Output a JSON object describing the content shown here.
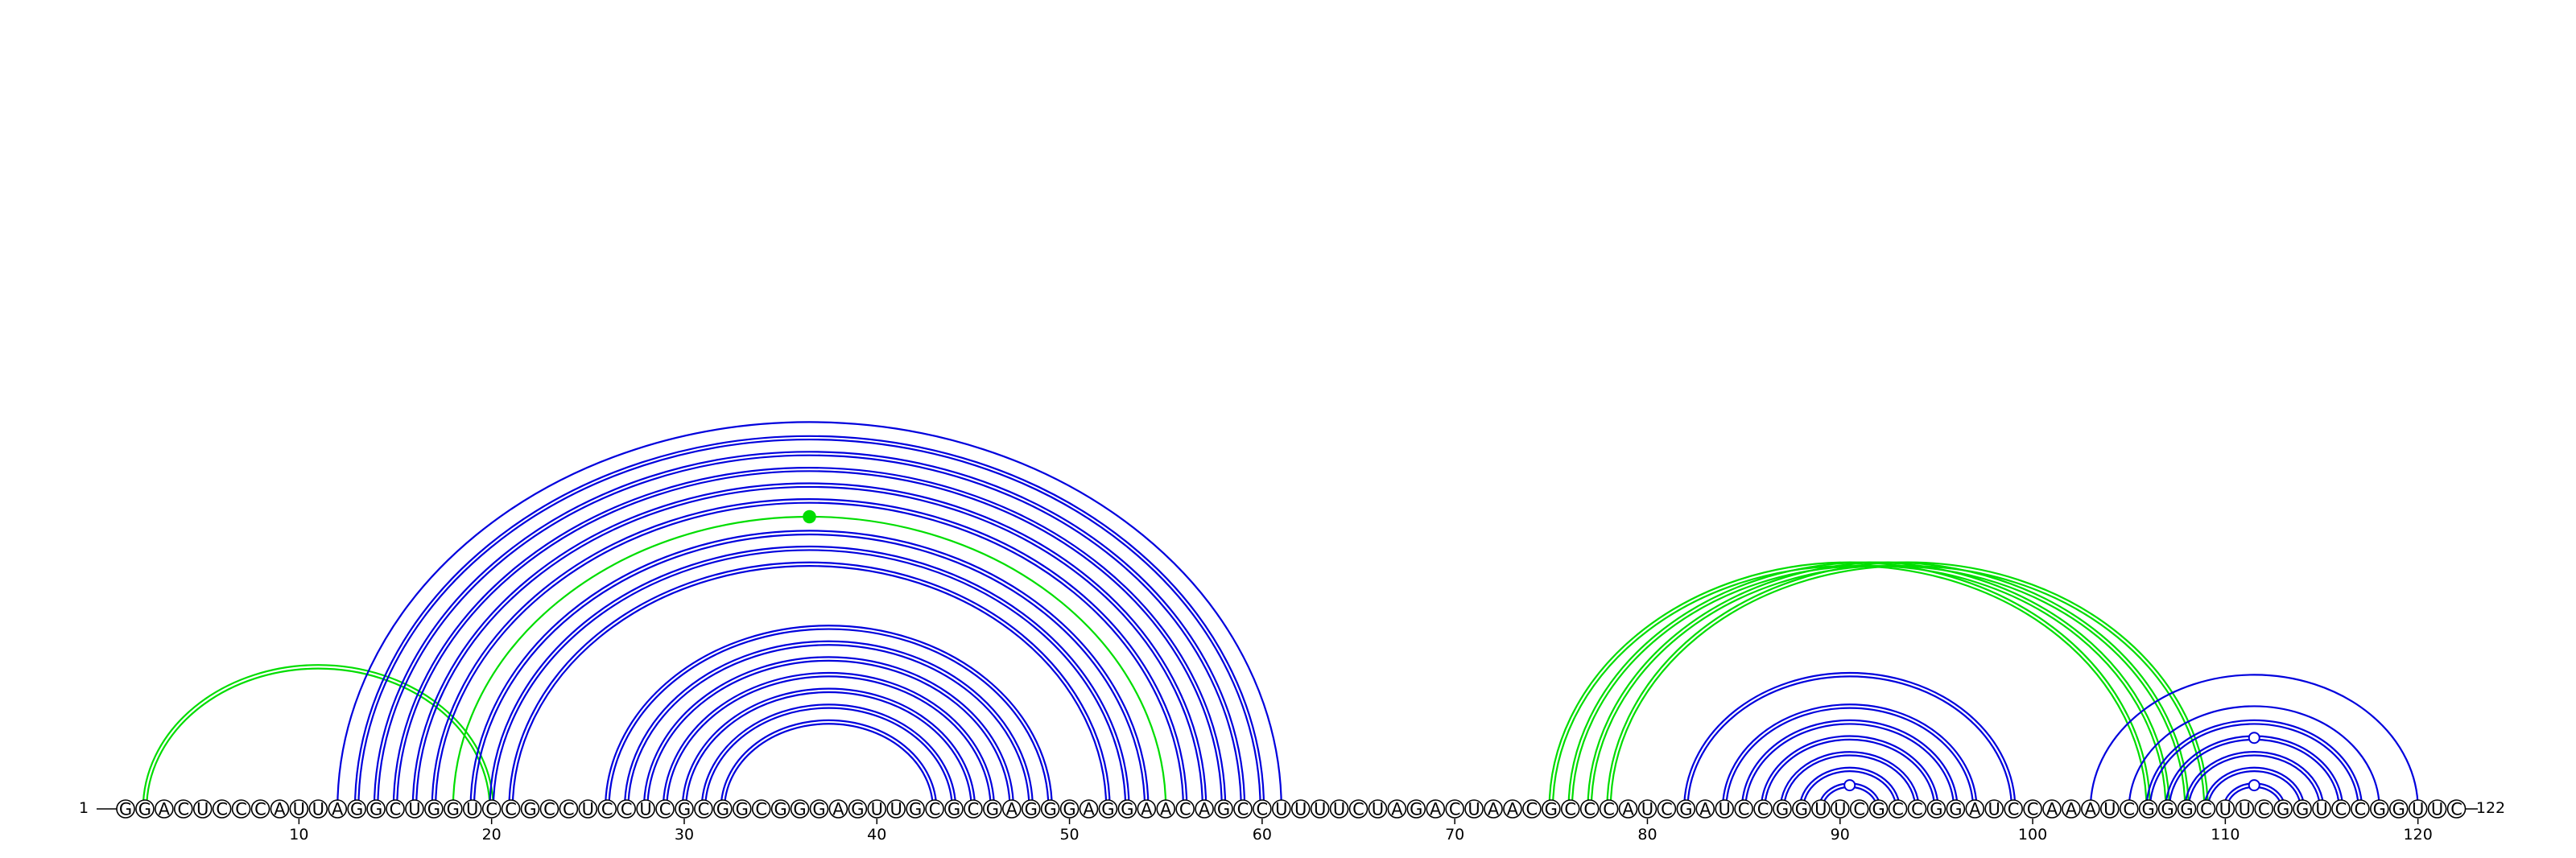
{
  "sequence": "GGACUCCCAUUAGGCUGGUCCGCCUCCUCGCGGCGGGAGUUGCGCGAGGGAGGAACAGCCUUUUCUAGACUAACGCCCAUCGAUCCGGUUCGCCGGAUCCAAAUCGGGCUUCGGUCCGGUUC",
  "start_label": "1",
  "end_label": "122",
  "tick_labels": [
    "10",
    "20",
    "30",
    "40",
    "50",
    "60",
    "70",
    "80",
    "90",
    "100",
    "110",
    "120"
  ],
  "colors": {
    "blue": "#0000dd",
    "green": "#00dd00"
  },
  "chart_data": {
    "type": "arc-diagram",
    "length": 122,
    "ticks": [
      10,
      20,
      30,
      40,
      50,
      60,
      70,
      80,
      90,
      100,
      110,
      120
    ],
    "arcs": [
      {
        "i": 2,
        "j": 20,
        "color": "green",
        "double": true
      },
      {
        "i": 12,
        "j": 61,
        "color": "blue",
        "double": false
      },
      {
        "i": 13,
        "j": 60,
        "color": "blue",
        "double": true
      },
      {
        "i": 14,
        "j": 59,
        "color": "blue",
        "double": true
      },
      {
        "i": 15,
        "j": 58,
        "color": "blue",
        "double": true
      },
      {
        "i": 16,
        "j": 57,
        "color": "blue",
        "double": true
      },
      {
        "i": 17,
        "j": 56,
        "color": "blue",
        "double": true
      },
      {
        "i": 18,
        "j": 55,
        "color": "green",
        "double": false,
        "dot": "green"
      },
      {
        "i": 19,
        "j": 54,
        "color": "blue",
        "double": true
      },
      {
        "i": 20,
        "j": 53,
        "color": "blue",
        "double": true
      },
      {
        "i": 21,
        "j": 52,
        "color": "blue",
        "double": true
      },
      {
        "i": 26,
        "j": 49,
        "color": "blue",
        "double": true
      },
      {
        "i": 27,
        "j": 48,
        "color": "blue",
        "double": true
      },
      {
        "i": 28,
        "j": 47,
        "color": "blue",
        "double": true
      },
      {
        "i": 29,
        "j": 46,
        "color": "blue",
        "double": true
      },
      {
        "i": 30,
        "j": 45,
        "color": "blue",
        "double": true
      },
      {
        "i": 31,
        "j": 44,
        "color": "blue",
        "double": true
      },
      {
        "i": 32,
        "j": 43,
        "color": "blue",
        "double": true
      },
      {
        "i": 75,
        "j": 106,
        "color": "green",
        "double": true
      },
      {
        "i": 76,
        "j": 107,
        "color": "green",
        "double": true
      },
      {
        "i": 77,
        "j": 108,
        "color": "green",
        "double": true
      },
      {
        "i": 78,
        "j": 109,
        "color": "green",
        "double": true
      },
      {
        "i": 82,
        "j": 99,
        "color": "blue",
        "double": true
      },
      {
        "i": 84,
        "j": 97,
        "color": "blue",
        "double": true
      },
      {
        "i": 85,
        "j": 96,
        "color": "blue",
        "double": true
      },
      {
        "i": 86,
        "j": 95,
        "color": "blue",
        "double": true
      },
      {
        "i": 87,
        "j": 94,
        "color": "blue",
        "double": true
      },
      {
        "i": 88,
        "j": 93,
        "color": "blue",
        "double": true
      },
      {
        "i": 89,
        "j": 92,
        "color": "blue",
        "double": true,
        "dot": "blue-open"
      },
      {
        "i": 103,
        "j": 120,
        "color": "blue",
        "double": false
      },
      {
        "i": 105,
        "j": 118,
        "color": "blue",
        "double": false
      },
      {
        "i": 106,
        "j": 117,
        "color": "blue",
        "double": true
      },
      {
        "i": 107,
        "j": 116,
        "color": "blue",
        "double": true,
        "dot": "blue-open"
      },
      {
        "i": 108,
        "j": 115,
        "color": "blue",
        "double": true
      },
      {
        "i": 109,
        "j": 114,
        "color": "blue",
        "double": true
      },
      {
        "i": 110,
        "j": 113,
        "color": "blue",
        "double": true,
        "dot": "blue-open"
      }
    ]
  }
}
